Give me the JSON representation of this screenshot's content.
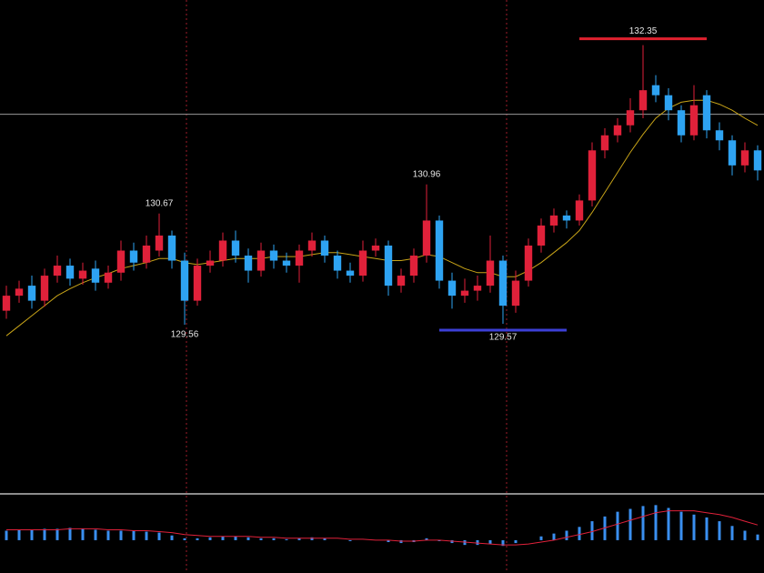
{
  "chart_data": {
    "type": "candlestick",
    "ylim": [
      127.9,
      132.8
    ],
    "open": [
      129.7,
      129.85,
      129.95,
      129.8,
      130.05,
      130.15,
      130.02,
      130.12,
      129.98,
      130.08,
      130.3,
      130.18,
      130.3,
      130.45,
      130.2,
      129.8,
      130.15,
      130.2,
      130.4,
      130.25,
      130.1,
      130.3,
      130.2,
      130.15,
      130.3,
      130.4,
      130.25,
      130.1,
      130.05,
      130.3,
      130.35,
      129.95,
      130.05,
      130.25,
      130.6,
      130.0,
      129.85,
      129.9,
      129.95,
      130.2,
      129.75,
      130.0,
      130.35,
      130.55,
      130.65,
      130.6,
      130.8,
      131.3,
      131.45,
      131.55,
      131.7,
      131.95,
      131.85,
      131.7,
      131.45,
      131.85,
      131.5,
      131.4,
      131.15,
      131.3
    ],
    "high": [
      129.95,
      130.0,
      130.05,
      130.12,
      130.25,
      130.22,
      130.18,
      130.2,
      130.15,
      130.4,
      130.38,
      130.45,
      130.67,
      130.5,
      130.28,
      130.22,
      130.3,
      130.48,
      130.5,
      130.32,
      130.38,
      130.36,
      130.28,
      130.36,
      130.48,
      130.45,
      130.3,
      130.18,
      130.4,
      130.42,
      130.4,
      130.12,
      130.32,
      130.96,
      130.65,
      130.08,
      130.02,
      130.05,
      130.45,
      130.25,
      130.1,
      130.42,
      130.62,
      130.72,
      130.7,
      130.86,
      131.38,
      131.52,
      131.62,
      131.82,
      132.35,
      132.05,
      131.92,
      131.75,
      131.95,
      131.9,
      131.58,
      131.45,
      131.38,
      131.35
    ],
    "low": [
      129.62,
      129.78,
      129.72,
      129.74,
      129.98,
      129.95,
      129.96,
      129.9,
      129.92,
      130.0,
      130.1,
      130.12,
      130.24,
      130.12,
      129.56,
      129.75,
      130.08,
      130.14,
      130.18,
      129.98,
      130.04,
      130.12,
      130.08,
      129.98,
      130.24,
      130.18,
      130.02,
      129.98,
      129.99,
      130.24,
      129.85,
      129.88,
      129.98,
      130.18,
      129.92,
      129.72,
      129.78,
      129.8,
      129.88,
      129.57,
      129.68,
      129.94,
      130.28,
      130.48,
      130.52,
      130.55,
      130.74,
      131.22,
      131.38,
      131.48,
      131.62,
      131.78,
      131.6,
      131.38,
      131.4,
      131.42,
      131.3,
      131.05,
      131.08,
      131.0
    ],
    "close": [
      129.85,
      129.92,
      129.8,
      130.05,
      130.15,
      130.02,
      130.1,
      129.98,
      130.08,
      130.3,
      130.18,
      130.35,
      130.45,
      130.2,
      129.8,
      130.15,
      130.2,
      130.4,
      130.25,
      130.1,
      130.3,
      130.2,
      130.15,
      130.3,
      130.4,
      130.25,
      130.1,
      130.05,
      130.3,
      130.35,
      129.95,
      130.05,
      130.25,
      130.6,
      130.0,
      129.85,
      129.9,
      129.95,
      130.2,
      129.75,
      130.0,
      130.35,
      130.55,
      130.65,
      130.6,
      130.8,
      131.3,
      131.45,
      131.55,
      131.7,
      131.9,
      131.85,
      131.7,
      131.45,
      131.75,
      131.5,
      131.4,
      131.15,
      131.3,
      131.1
    ],
    "up_color": "#e0213a",
    "down_color": "#2ea3f2",
    "moving_average": {
      "color": "#c8a418",
      "values": [
        129.45,
        129.55,
        129.65,
        129.75,
        129.85,
        129.92,
        129.98,
        130.03,
        130.07,
        130.12,
        130.15,
        130.18,
        130.22,
        130.22,
        130.18,
        130.16,
        130.18,
        130.2,
        130.22,
        130.22,
        130.22,
        130.24,
        130.24,
        130.24,
        130.26,
        130.28,
        130.28,
        130.26,
        130.24,
        130.22,
        130.2,
        130.2,
        130.22,
        130.26,
        130.24,
        130.18,
        130.12,
        130.08,
        130.08,
        130.04,
        130.04,
        130.1,
        130.18,
        130.28,
        130.38,
        130.5,
        130.68,
        130.88,
        131.08,
        131.28,
        131.46,
        131.62,
        131.72,
        131.78,
        131.8,
        131.8,
        131.76,
        131.7,
        131.62,
        131.55
      ]
    },
    "price_line": {
      "value": 131.66,
      "color": "#9a9a9a"
    },
    "annotations": [
      {
        "value": 130.67,
        "side": "high"
      },
      {
        "value": 129.56,
        "side": "low"
      },
      {
        "value": 130.96,
        "side": "high"
      },
      {
        "value": 129.57,
        "side": "low",
        "bar_color": "#3c3fd6"
      },
      {
        "value": 132.35,
        "side": "high",
        "bar_color": "#e0212f"
      }
    ],
    "macd": {
      "ylim": [
        -0.25,
        0.45
      ],
      "histogram_color": "#3a8ff0",
      "signal_color": "#e0213a",
      "histogram": [
        0.1,
        0.11,
        0.11,
        0.12,
        0.12,
        0.13,
        0.12,
        0.11,
        0.1,
        0.1,
        0.1,
        0.09,
        0.08,
        0.05,
        0.02,
        0.02,
        0.03,
        0.04,
        0.04,
        0.03,
        0.02,
        0.02,
        0.01,
        0.02,
        0.03,
        0.02,
        0.0,
        -0.01,
        0.0,
        0.0,
        -0.02,
        -0.03,
        -0.02,
        0.02,
        -0.01,
        -0.03,
        -0.05,
        -0.05,
        -0.04,
        -0.06,
        -0.03,
        0.0,
        0.04,
        0.07,
        0.1,
        0.14,
        0.2,
        0.25,
        0.3,
        0.33,
        0.36,
        0.37,
        0.34,
        0.3,
        0.27,
        0.24,
        0.2,
        0.15,
        0.1,
        0.06
      ],
      "signal": [
        0.11,
        0.11,
        0.11,
        0.11,
        0.11,
        0.12,
        0.12,
        0.12,
        0.11,
        0.11,
        0.1,
        0.1,
        0.09,
        0.08,
        0.06,
        0.05,
        0.04,
        0.04,
        0.04,
        0.04,
        0.03,
        0.03,
        0.02,
        0.02,
        0.02,
        0.02,
        0.02,
        0.01,
        0.01,
        0.0,
        0.0,
        -0.01,
        -0.01,
        0.0,
        0.0,
        -0.01,
        -0.02,
        -0.03,
        -0.04,
        -0.05,
        -0.05,
        -0.04,
        -0.02,
        0.0,
        0.03,
        0.06,
        0.09,
        0.13,
        0.17,
        0.21,
        0.25,
        0.29,
        0.31,
        0.31,
        0.31,
        0.29,
        0.27,
        0.24,
        0.2,
        0.16
      ]
    }
  }
}
